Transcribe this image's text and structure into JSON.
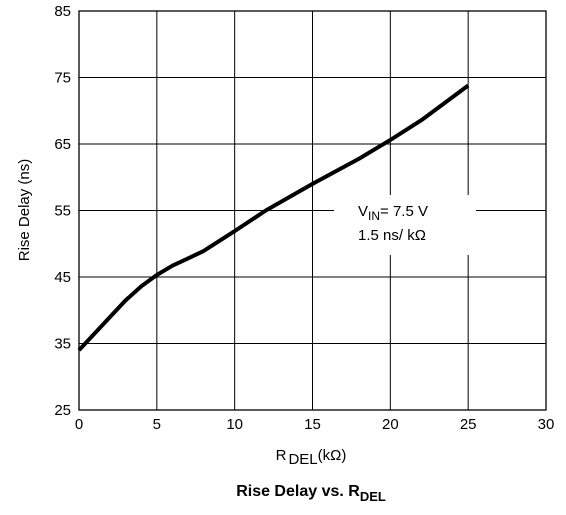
{
  "chart_data": {
    "type": "line",
    "title": {
      "main": "Rise Delay vs. R",
      "sub": "DEL"
    },
    "xlabel": {
      "main": "R",
      "sub": "DEL",
      "unit": "(kΩ)"
    },
    "ylabel": "Rise Delay (ns)",
    "xlim": [
      0,
      30
    ],
    "ylim": [
      25,
      85
    ],
    "x_ticks": [
      0,
      5,
      10,
      15,
      20,
      25,
      30
    ],
    "y_ticks": [
      25,
      35,
      45,
      55,
      65,
      75,
      85
    ],
    "grid": true,
    "series": [
      {
        "x": [
          0,
          1,
          2,
          3,
          4,
          5,
          6,
          7,
          8,
          10,
          12,
          15,
          18,
          20,
          22,
          25
        ],
        "y": [
          34,
          36.5,
          39,
          41.5,
          43.6,
          45.3,
          46.7,
          47.8,
          48.9,
          51.9,
          55,
          59,
          62.8,
          65.6,
          68.6,
          73.8
        ]
      }
    ],
    "annotation": {
      "line1_prefix": "V",
      "line1_sub": "IN",
      "line1_suffix": "= 7.5 V",
      "line2": "1.5 ns/ kΩ"
    },
    "colors": {
      "line": "#000000",
      "grid": "#000000",
      "background": "#ffffff"
    }
  }
}
